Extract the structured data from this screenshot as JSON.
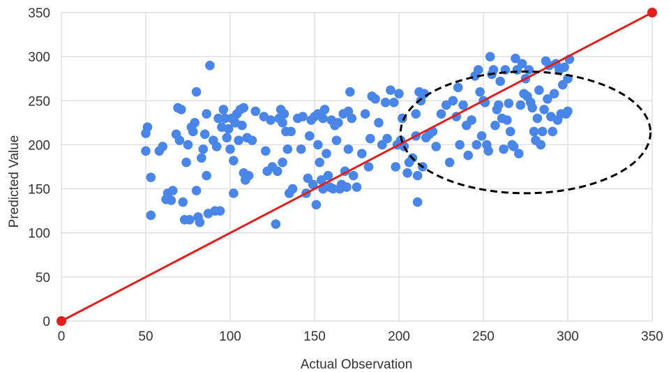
{
  "chart_data": {
    "type": "scatter",
    "title": "",
    "xlabel": "Actual Observation",
    "ylabel": "Predicted Value",
    "xlim": [
      0,
      350
    ],
    "ylim": [
      0,
      350
    ],
    "xticks": [
      "0",
      "50",
      "100",
      "150",
      "200",
      "250",
      "300",
      "350"
    ],
    "yticks": [
      "0",
      "50",
      "100",
      "150",
      "200",
      "250",
      "300",
      "350"
    ],
    "grid": true,
    "legend": "none",
    "colors": {
      "points": "#4a86e8",
      "line": "#e01f1f",
      "ellipse": "#000000",
      "grid": "#d9d9d9"
    },
    "series": [
      {
        "values": [
          [
            50,
            193
          ],
          [
            50,
            213
          ],
          [
            51,
            220
          ],
          [
            53,
            163
          ],
          [
            53,
            120
          ],
          [
            58,
            193
          ],
          [
            60,
            198
          ],
          [
            62,
            138
          ],
          [
            63,
            145
          ],
          [
            65,
            137
          ],
          [
            66,
            148
          ],
          [
            68,
            212
          ],
          [
            69,
            242
          ],
          [
            70,
            205
          ],
          [
            71,
            240
          ],
          [
            72,
            135
          ],
          [
            73,
            115
          ],
          [
            74,
            180
          ],
          [
            75,
            200
          ],
          [
            76,
            115
          ],
          [
            77,
            220
          ],
          [
            78,
            215
          ],
          [
            79,
            225
          ],
          [
            80,
            148
          ],
          [
            80,
            260
          ],
          [
            81,
            118
          ],
          [
            82,
            112
          ],
          [
            83,
            185
          ],
          [
            84,
            195
          ],
          [
            85,
            212
          ],
          [
            86,
            235
          ],
          [
            86,
            165
          ],
          [
            87,
            122
          ],
          [
            88,
            290
          ],
          [
            90,
            205
          ],
          [
            91,
            125
          ],
          [
            92,
            198
          ],
          [
            93,
            230
          ],
          [
            94,
            125
          ],
          [
            95,
            220
          ],
          [
            96,
            240
          ],
          [
            97,
            230
          ],
          [
            98,
            208
          ],
          [
            99,
            218
          ],
          [
            100,
            195
          ],
          [
            101,
            230
          ],
          [
            102,
            182
          ],
          [
            102,
            145
          ],
          [
            103,
            225
          ],
          [
            104,
            235
          ],
          [
            105,
            205
          ],
          [
            106,
            240
          ],
          [
            107,
            222
          ],
          [
            108,
            242
          ],
          [
            108,
            168
          ],
          [
            109,
            160
          ],
          [
            110,
            208
          ],
          [
            111,
            165
          ],
          [
            113,
            205
          ],
          [
            115,
            238
          ],
          [
            120,
            232
          ],
          [
            121,
            193
          ],
          [
            122,
            170
          ],
          [
            124,
            228
          ],
          [
            125,
            175
          ],
          [
            127,
            110
          ],
          [
            128,
            170
          ],
          [
            129,
            230
          ],
          [
            130,
            240
          ],
          [
            131,
            225
          ],
          [
            131,
            180
          ],
          [
            132,
            235
          ],
          [
            133,
            215
          ],
          [
            134,
            195
          ],
          [
            135,
            145
          ],
          [
            136,
            215
          ],
          [
            137,
            150
          ],
          [
            140,
            230
          ],
          [
            142,
            195
          ],
          [
            143,
            232
          ],
          [
            145,
            145
          ],
          [
            146,
            162
          ],
          [
            147,
            210
          ],
          [
            148,
            228
          ],
          [
            149,
            155
          ],
          [
            150,
            232
          ],
          [
            151,
            132
          ],
          [
            152,
            235
          ],
          [
            152,
            200
          ],
          [
            153,
            180
          ],
          [
            154,
            160
          ],
          [
            155,
            230
          ],
          [
            155,
            150
          ],
          [
            156,
            240
          ],
          [
            157,
            190
          ],
          [
            158,
            165
          ],
          [
            159,
            152
          ],
          [
            160,
            228
          ],
          [
            161,
            150
          ],
          [
            162,
            222
          ],
          [
            163,
            205
          ],
          [
            164,
            225
          ],
          [
            165,
            150
          ],
          [
            166,
            155
          ],
          [
            167,
            235
          ],
          [
            168,
            170
          ],
          [
            169,
            152
          ],
          [
            170,
            238
          ],
          [
            170,
            195
          ],
          [
            171,
            260
          ],
          [
            172,
            230
          ],
          [
            173,
            165
          ],
          [
            175,
            152
          ],
          [
            178,
            190
          ],
          [
            180,
            235
          ],
          [
            182,
            175
          ],
          [
            183,
            207
          ],
          [
            184,
            255
          ],
          [
            186,
            252
          ],
          [
            188,
            225
          ],
          [
            190,
            200
          ],
          [
            192,
            248
          ],
          [
            193,
            207
          ],
          [
            195,
            262
          ],
          [
            197,
            248
          ],
          [
            198,
            175
          ],
          [
            199,
            200
          ],
          [
            200,
            258
          ],
          [
            201,
            205
          ],
          [
            202,
            230
          ],
          [
            203,
            198
          ],
          [
            205,
            168
          ],
          [
            206,
            180
          ],
          [
            208,
            185
          ],
          [
            210,
            235
          ],
          [
            210,
            210
          ],
          [
            211,
            165
          ],
          [
            211,
            135
          ],
          [
            212,
            260
          ],
          [
            213,
            250
          ],
          [
            214,
            175
          ],
          [
            215,
            258
          ],
          [
            216,
            208
          ],
          [
            218,
            212
          ],
          [
            220,
            215
          ],
          [
            222,
            198
          ],
          [
            225,
            235
          ],
          [
            228,
            245
          ],
          [
            230,
            180
          ],
          [
            232,
            250
          ],
          [
            234,
            232
          ],
          [
            235,
            265
          ],
          [
            236,
            200
          ],
          [
            238,
            245
          ],
          [
            240,
            222
          ],
          [
            241,
            188
          ],
          [
            243,
            228
          ],
          [
            245,
            278
          ],
          [
            246,
            200
          ],
          [
            247,
            285
          ],
          [
            248,
            260
          ],
          [
            249,
            210
          ],
          [
            250,
            250
          ],
          [
            251,
            248
          ],
          [
            252,
            200
          ],
          [
            253,
            193
          ],
          [
            254,
            300
          ],
          [
            255,
            280
          ],
          [
            256,
            285
          ],
          [
            257,
            222
          ],
          [
            258,
            240
          ],
          [
            259,
            245
          ],
          [
            260,
            272
          ],
          [
            261,
            230
          ],
          [
            262,
            195
          ],
          [
            263,
            285
          ],
          [
            264,
            228
          ],
          [
            265,
            247
          ],
          [
            266,
            215
          ],
          [
            267,
            200
          ],
          [
            268,
            198
          ],
          [
            269,
            298
          ],
          [
            270,
            285
          ],
          [
            271,
            190
          ],
          [
            272,
            245
          ],
          [
            273,
            292
          ],
          [
            274,
            258
          ],
          [
            275,
            275
          ],
          [
            276,
            255
          ],
          [
            277,
            285
          ],
          [
            278,
            248
          ],
          [
            279,
            242
          ],
          [
            280,
            215
          ],
          [
            281,
            205
          ],
          [
            282,
            230
          ],
          [
            283,
            262
          ],
          [
            284,
            200
          ],
          [
            285,
            215
          ],
          [
            286,
            240
          ],
          [
            287,
            295
          ],
          [
            288,
            252
          ],
          [
            289,
            290
          ],
          [
            290,
            232
          ],
          [
            291,
            215
          ],
          [
            292,
            258
          ],
          [
            293,
            292
          ],
          [
            294,
            228
          ],
          [
            295,
            285
          ],
          [
            296,
            235
          ],
          [
            297,
            268
          ],
          [
            298,
            288
          ],
          [
            299,
            235
          ],
          [
            300,
            275
          ],
          [
            300,
            238
          ],
          [
            301,
            297
          ]
        ]
      }
    ],
    "reference_line": {
      "from": [
        0,
        0
      ],
      "to": [
        350,
        350
      ]
    },
    "annotation": {
      "shape": "dashed-ellipse",
      "center": [
        275,
        214
      ],
      "radius_x": 74,
      "radius_y": 69
    }
  }
}
